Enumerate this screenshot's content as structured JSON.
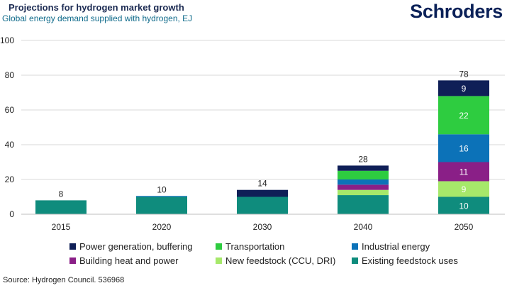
{
  "title": "Projections for hydrogen market growth",
  "subtitle": "Global energy demand supplied with hydrogen, EJ",
  "logo": "Schroders",
  "source": "Source: Hydrogen Council. 536968",
  "chart_data": {
    "type": "bar",
    "stacked": true,
    "title": "Projections for hydrogen market growth",
    "subtitle": "Global energy demand supplied with hydrogen, EJ",
    "categories": [
      "2015",
      "2020",
      "2030",
      "2040",
      "2050"
    ],
    "ylim": [
      0,
      100
    ],
    "yticks": [
      0,
      20,
      40,
      60,
      80,
      100
    ],
    "grid": true,
    "legend_position": "bottom",
    "totals": [
      8,
      10,
      14,
      28,
      78
    ],
    "series": [
      {
        "name": "Existing feedstock uses",
        "color": "#0f8c7d",
        "values": [
          8,
          10,
          10,
          11,
          10
        ],
        "labels": [
          false,
          false,
          false,
          false,
          true
        ]
      },
      {
        "name": "New feedstock (CCU, DRI)",
        "color": "#a6e86a",
        "values": [
          0,
          0,
          0,
          3,
          9
        ],
        "labels": [
          false,
          false,
          false,
          false,
          true
        ]
      },
      {
        "name": "Building heat and power",
        "color": "#8a1f87",
        "values": [
          0,
          0,
          0,
          3,
          11
        ],
        "labels": [
          false,
          false,
          false,
          false,
          true
        ]
      },
      {
        "name": "Industrial energy",
        "color": "#0c72b8",
        "values": [
          0,
          0.5,
          0,
          3,
          16
        ],
        "labels": [
          false,
          false,
          false,
          false,
          true
        ]
      },
      {
        "name": "Transportation",
        "color": "#2ecc40",
        "values": [
          0,
          0,
          0,
          5,
          22
        ],
        "labels": [
          false,
          false,
          false,
          false,
          true
        ]
      },
      {
        "name": "Power generation, buffering",
        "color": "#0f1f57",
        "values": [
          0,
          0,
          4,
          3,
          9
        ],
        "labels": [
          false,
          false,
          false,
          false,
          true
        ]
      }
    ]
  },
  "legend": [
    {
      "label": "Power generation, buffering",
      "color": "#0f1f57"
    },
    {
      "label": "Transportation",
      "color": "#2ecc40"
    },
    {
      "label": "Industrial energy",
      "color": "#0c72b8"
    },
    {
      "label": "Building heat and power",
      "color": "#8a1f87"
    },
    {
      "label": "New feedstock (CCU, DRI)",
      "color": "#a6e86a"
    },
    {
      "label": "Existing feedstock uses",
      "color": "#0f8c7d"
    }
  ]
}
